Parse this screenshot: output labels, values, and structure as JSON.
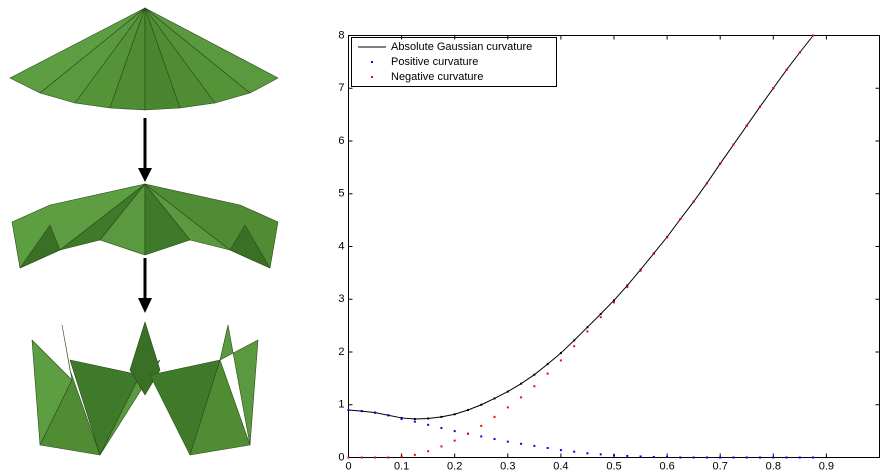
{
  "chart_data": {
    "type": "line",
    "x": [
      0,
      0.025,
      0.05,
      0.075,
      0.1,
      0.125,
      0.15,
      0.175,
      0.2,
      0.225,
      0.25,
      0.275,
      0.3,
      0.325,
      0.35,
      0.375,
      0.4,
      0.425,
      0.45,
      0.475,
      0.5,
      0.525,
      0.55,
      0.575,
      0.6,
      0.625,
      0.65,
      0.675,
      0.7,
      0.725,
      0.75,
      0.775,
      0.8,
      0.825,
      0.85,
      0.875
    ],
    "series": [
      {
        "name": "Absolute Gaussian curvature",
        "color": "#000000",
        "style": "line",
        "markers": true,
        "values": [
          0.9,
          0.88,
          0.85,
          0.8,
          0.75,
          0.73,
          0.74,
          0.77,
          0.82,
          0.9,
          1.0,
          1.12,
          1.25,
          1.4,
          1.57,
          1.77,
          1.98,
          2.22,
          2.47,
          2.72,
          2.98,
          3.26,
          3.56,
          3.87,
          4.18,
          4.52,
          4.85,
          5.2,
          5.57,
          5.93,
          6.29,
          6.65,
          7.0,
          7.35,
          7.68,
          8.0
        ]
      },
      {
        "name": "Positive curvature",
        "color": "#0000ff",
        "style": "dots",
        "values": [
          0.9,
          0.88,
          0.85,
          0.8,
          0.73,
          0.68,
          0.62,
          0.56,
          0.5,
          0.45,
          0.4,
          0.35,
          0.3,
          0.26,
          0.22,
          0.18,
          0.14,
          0.11,
          0.08,
          0.06,
          0.04,
          0.03,
          0.02,
          0.01,
          0.01,
          0,
          0,
          0,
          0,
          0,
          0,
          0,
          0,
          0,
          0,
          0
        ]
      },
      {
        "name": "Negative curvature",
        "color": "#ff0000",
        "style": "dots",
        "values": [
          0,
          0,
          0,
          0,
          0.02,
          0.05,
          0.12,
          0.21,
          0.32,
          0.45,
          0.6,
          0.77,
          0.95,
          1.14,
          1.35,
          1.59,
          1.84,
          2.11,
          2.39,
          2.66,
          2.94,
          3.23,
          3.54,
          3.86,
          4.17,
          4.52,
          4.85,
          5.2,
          5.57,
          5.93,
          6.29,
          6.65,
          7.0,
          7.35,
          7.68,
          8.0
        ]
      }
    ],
    "xlim": [
      0,
      1
    ],
    "xticks": [
      0,
      0.1,
      0.2,
      0.3,
      0.4,
      0.5,
      0.6,
      0.7,
      0.8,
      0.9
    ],
    "ylim": [
      0,
      8
    ],
    "yticks": [
      0,
      1,
      2,
      3,
      4,
      5,
      6,
      7,
      8
    ],
    "legend": "upper left",
    "grid": false
  }
}
